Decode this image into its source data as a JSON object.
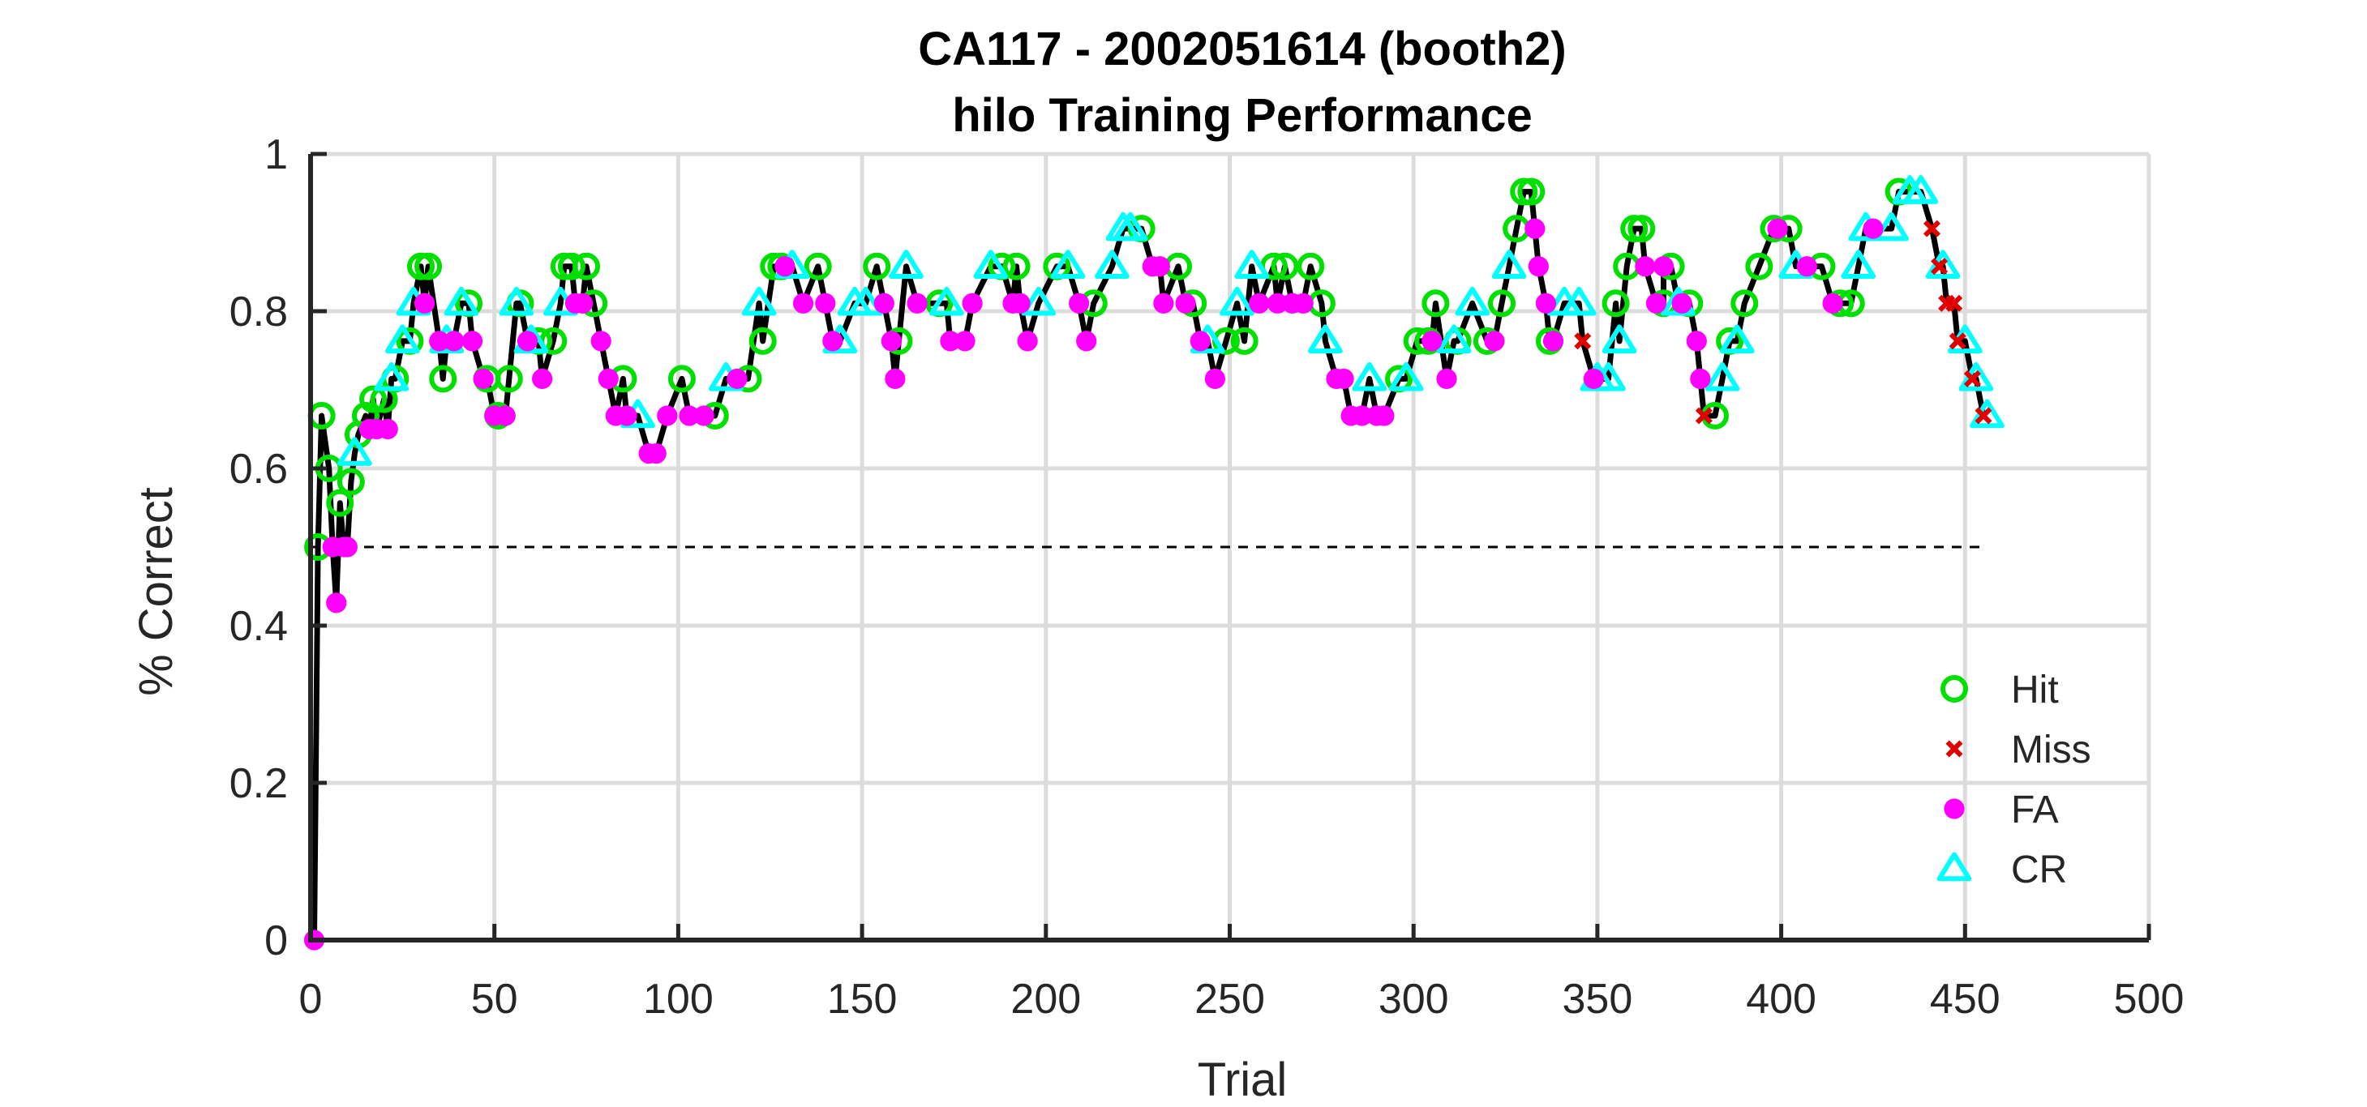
{
  "figure": {
    "title_line1": "CA117 - 2002051614 (booth2)",
    "title_line2": "hilo Training Performance"
  },
  "chart_data": {
    "type": "line",
    "title": "CA117 - 2002051614 (booth2)\nhilo Training Performance",
    "xlabel": "Trial",
    "ylabel": "% Correct",
    "xlim": [
      0,
      500
    ],
    "ylim": [
      0,
      1
    ],
    "xticks": [
      0,
      50,
      100,
      150,
      200,
      250,
      300,
      350,
      400,
      450,
      500
    ],
    "xtick_labels": [
      "0",
      "50",
      "100",
      "150",
      "200",
      "250",
      "300",
      "350",
      "400",
      "450",
      "500"
    ],
    "yticks": [
      0,
      0.2,
      0.4,
      0.6,
      0.8,
      1
    ],
    "ytick_labels": [
      "0",
      "0.2",
      "0.4",
      "0.6",
      "0.8",
      "1"
    ],
    "grid": true,
    "legend_position": "lower-right",
    "reference_line": {
      "y": 0.5,
      "x": [
        0,
        455
      ],
      "style": "dashed",
      "color": "#000000"
    },
    "line_color": "#000000",
    "series": [
      {
        "name": "Hit",
        "marker": "circle-open",
        "color": "#00e000",
        "points": [
          [
            2,
            0.5
          ],
          [
            3,
            0.667
          ],
          [
            5,
            0.6
          ],
          [
            8,
            0.556
          ],
          [
            11,
            0.583
          ],
          [
            13,
            0.643
          ],
          [
            15,
            0.667
          ],
          [
            17,
            0.688
          ],
          [
            20,
            0.688
          ],
          [
            23,
            0.714
          ],
          [
            27,
            0.762
          ],
          [
            30,
            0.857
          ],
          [
            32,
            0.857
          ],
          [
            36,
            0.714
          ],
          [
            43,
            0.81
          ],
          [
            48,
            0.714
          ],
          [
            51,
            0.667
          ],
          [
            54,
            0.714
          ],
          [
            57,
            0.81
          ],
          [
            62,
            0.762
          ],
          [
            66,
            0.762
          ],
          [
            69,
            0.857
          ],
          [
            71,
            0.857
          ],
          [
            75,
            0.857
          ],
          [
            77,
            0.81
          ],
          [
            85,
            0.714
          ],
          [
            101,
            0.714
          ],
          [
            110,
            0.667
          ],
          [
            119,
            0.714
          ],
          [
            123,
            0.762
          ],
          [
            126,
            0.857
          ],
          [
            128,
            0.857
          ],
          [
            138,
            0.857
          ],
          [
            154,
            0.857
          ],
          [
            160,
            0.762
          ],
          [
            171,
            0.81
          ],
          [
            188,
            0.857
          ],
          [
            192,
            0.857
          ],
          [
            203,
            0.857
          ],
          [
            213,
            0.81
          ],
          [
            226,
            0.905
          ],
          [
            236,
            0.857
          ],
          [
            240,
            0.81
          ],
          [
            249,
            0.762
          ],
          [
            254,
            0.762
          ],
          [
            262,
            0.857
          ],
          [
            265,
            0.857
          ],
          [
            272,
            0.857
          ],
          [
            275,
            0.81
          ],
          [
            296,
            0.714
          ],
          [
            301,
            0.762
          ],
          [
            304,
            0.762
          ],
          [
            306,
            0.81
          ],
          [
            312,
            0.762
          ],
          [
            320,
            0.762
          ],
          [
            324,
            0.81
          ],
          [
            328,
            0.905
          ],
          [
            330,
            0.952
          ],
          [
            332,
            0.952
          ],
          [
            337,
            0.762
          ],
          [
            355,
            0.81
          ],
          [
            358,
            0.857
          ],
          [
            360,
            0.905
          ],
          [
            362,
            0.905
          ],
          [
            368,
            0.81
          ],
          [
            370,
            0.857
          ],
          [
            375,
            0.81
          ],
          [
            382,
            0.667
          ],
          [
            386,
            0.762
          ],
          [
            390,
            0.81
          ],
          [
            394,
            0.857
          ],
          [
            398,
            0.905
          ],
          [
            402,
            0.905
          ],
          [
            411,
            0.857
          ],
          [
            416,
            0.81
          ],
          [
            419,
            0.81
          ],
          [
            432,
            0.952
          ]
        ]
      },
      {
        "name": "Miss",
        "marker": "x",
        "color": "#e00000",
        "points": [
          [
            346,
            0.762
          ],
          [
            379,
            0.667
          ],
          [
            441,
            0.905
          ],
          [
            443,
            0.857
          ],
          [
            445,
            0.81
          ],
          [
            447,
            0.81
          ],
          [
            448,
            0.762
          ],
          [
            452,
            0.714
          ],
          [
            455,
            0.667
          ]
        ]
      },
      {
        "name": "FA",
        "marker": "circle-filled",
        "color": "#ff00ff",
        "points": [
          [
            1,
            0
          ],
          [
            6,
            0.5
          ],
          [
            7,
            0.429
          ],
          [
            9,
            0.5
          ],
          [
            10,
            0.5
          ],
          [
            16,
            0.65
          ],
          [
            18,
            0.65
          ],
          [
            21,
            0.65
          ],
          [
            31,
            0.81
          ],
          [
            35,
            0.762
          ],
          [
            39,
            0.762
          ],
          [
            44,
            0.762
          ],
          [
            47,
            0.714
          ],
          [
            50,
            0.667
          ],
          [
            53,
            0.667
          ],
          [
            59,
            0.762
          ],
          [
            63,
            0.714
          ],
          [
            72,
            0.81
          ],
          [
            74,
            0.81
          ],
          [
            79,
            0.762
          ],
          [
            81,
            0.714
          ],
          [
            83,
            0.667
          ],
          [
            86,
            0.667
          ],
          [
            92,
            0.619
          ],
          [
            94,
            0.619
          ],
          [
            97,
            0.667
          ],
          [
            103,
            0.667
          ],
          [
            107,
            0.667
          ],
          [
            116,
            0.714
          ],
          [
            129,
            0.857
          ],
          [
            134,
            0.81
          ],
          [
            140,
            0.81
          ],
          [
            142,
            0.762
          ],
          [
            156,
            0.81
          ],
          [
            158,
            0.762
          ],
          [
            159,
            0.714
          ],
          [
            165,
            0.81
          ],
          [
            174,
            0.762
          ],
          [
            178,
            0.762
          ],
          [
            180,
            0.81
          ],
          [
            191,
            0.81
          ],
          [
            193,
            0.81
          ],
          [
            195,
            0.762
          ],
          [
            209,
            0.81
          ],
          [
            211,
            0.762
          ],
          [
            229,
            0.857
          ],
          [
            231,
            0.857
          ],
          [
            232,
            0.81
          ],
          [
            238,
            0.81
          ],
          [
            242,
            0.762
          ],
          [
            246,
            0.714
          ],
          [
            258,
            0.81
          ],
          [
            263,
            0.81
          ],
          [
            267,
            0.81
          ],
          [
            270,
            0.81
          ],
          [
            279,
            0.714
          ],
          [
            281,
            0.714
          ],
          [
            283,
            0.667
          ],
          [
            286,
            0.667
          ],
          [
            290,
            0.667
          ],
          [
            292,
            0.667
          ],
          [
            305,
            0.762
          ],
          [
            309,
            0.714
          ],
          [
            322,
            0.762
          ],
          [
            333,
            0.905
          ],
          [
            334,
            0.857
          ],
          [
            336,
            0.81
          ],
          [
            338,
            0.762
          ],
          [
            349,
            0.714
          ],
          [
            363,
            0.857
          ],
          [
            366,
            0.81
          ],
          [
            368,
            0.857
          ],
          [
            373,
            0.81
          ],
          [
            377,
            0.762
          ],
          [
            378,
            0.714
          ],
          [
            399,
            0.905
          ],
          [
            407,
            0.857
          ],
          [
            414,
            0.81
          ],
          [
            425,
            0.905
          ]
        ]
      },
      {
        "name": "CR",
        "marker": "triangle-open",
        "color": "#00ffff",
        "points": [
          [
            12,
            0.619
          ],
          [
            22,
            0.714
          ],
          [
            25,
            0.762
          ],
          [
            28,
            0.81
          ],
          [
            37,
            0.762
          ],
          [
            41,
            0.81
          ],
          [
            56,
            0.81
          ],
          [
            60,
            0.762
          ],
          [
            68,
            0.81
          ],
          [
            89,
            0.667
          ],
          [
            113,
            0.714
          ],
          [
            122,
            0.81
          ],
          [
            131,
            0.857
          ],
          [
            144,
            0.762
          ],
          [
            148,
            0.81
          ],
          [
            151,
            0.81
          ],
          [
            162,
            0.857
          ],
          [
            173,
            0.81
          ],
          [
            185,
            0.857
          ],
          [
            198,
            0.81
          ],
          [
            206,
            0.857
          ],
          [
            218,
            0.857
          ],
          [
            221,
            0.905
          ],
          [
            223,
            0.905
          ],
          [
            244,
            0.762
          ],
          [
            252,
            0.81
          ],
          [
            256,
            0.857
          ],
          [
            276,
            0.762
          ],
          [
            288,
            0.714
          ],
          [
            298,
            0.714
          ],
          [
            311,
            0.762
          ],
          [
            316,
            0.81
          ],
          [
            326,
            0.857
          ],
          [
            341,
            0.81
          ],
          [
            345,
            0.81
          ],
          [
            350,
            0.714
          ],
          [
            353,
            0.714
          ],
          [
            356,
            0.762
          ],
          [
            372,
            0.81
          ],
          [
            384,
            0.714
          ],
          [
            388,
            0.762
          ],
          [
            404,
            0.857
          ],
          [
            421,
            0.857
          ],
          [
            423,
            0.905
          ],
          [
            430,
            0.905
          ],
          [
            435,
            0.952
          ],
          [
            438,
            0.952
          ],
          [
            444,
            0.857
          ],
          [
            450,
            0.762
          ],
          [
            453,
            0.714
          ],
          [
            456,
            0.667
          ]
        ]
      }
    ],
    "legend": [
      "Hit",
      "Miss",
      "FA",
      "CR"
    ]
  }
}
